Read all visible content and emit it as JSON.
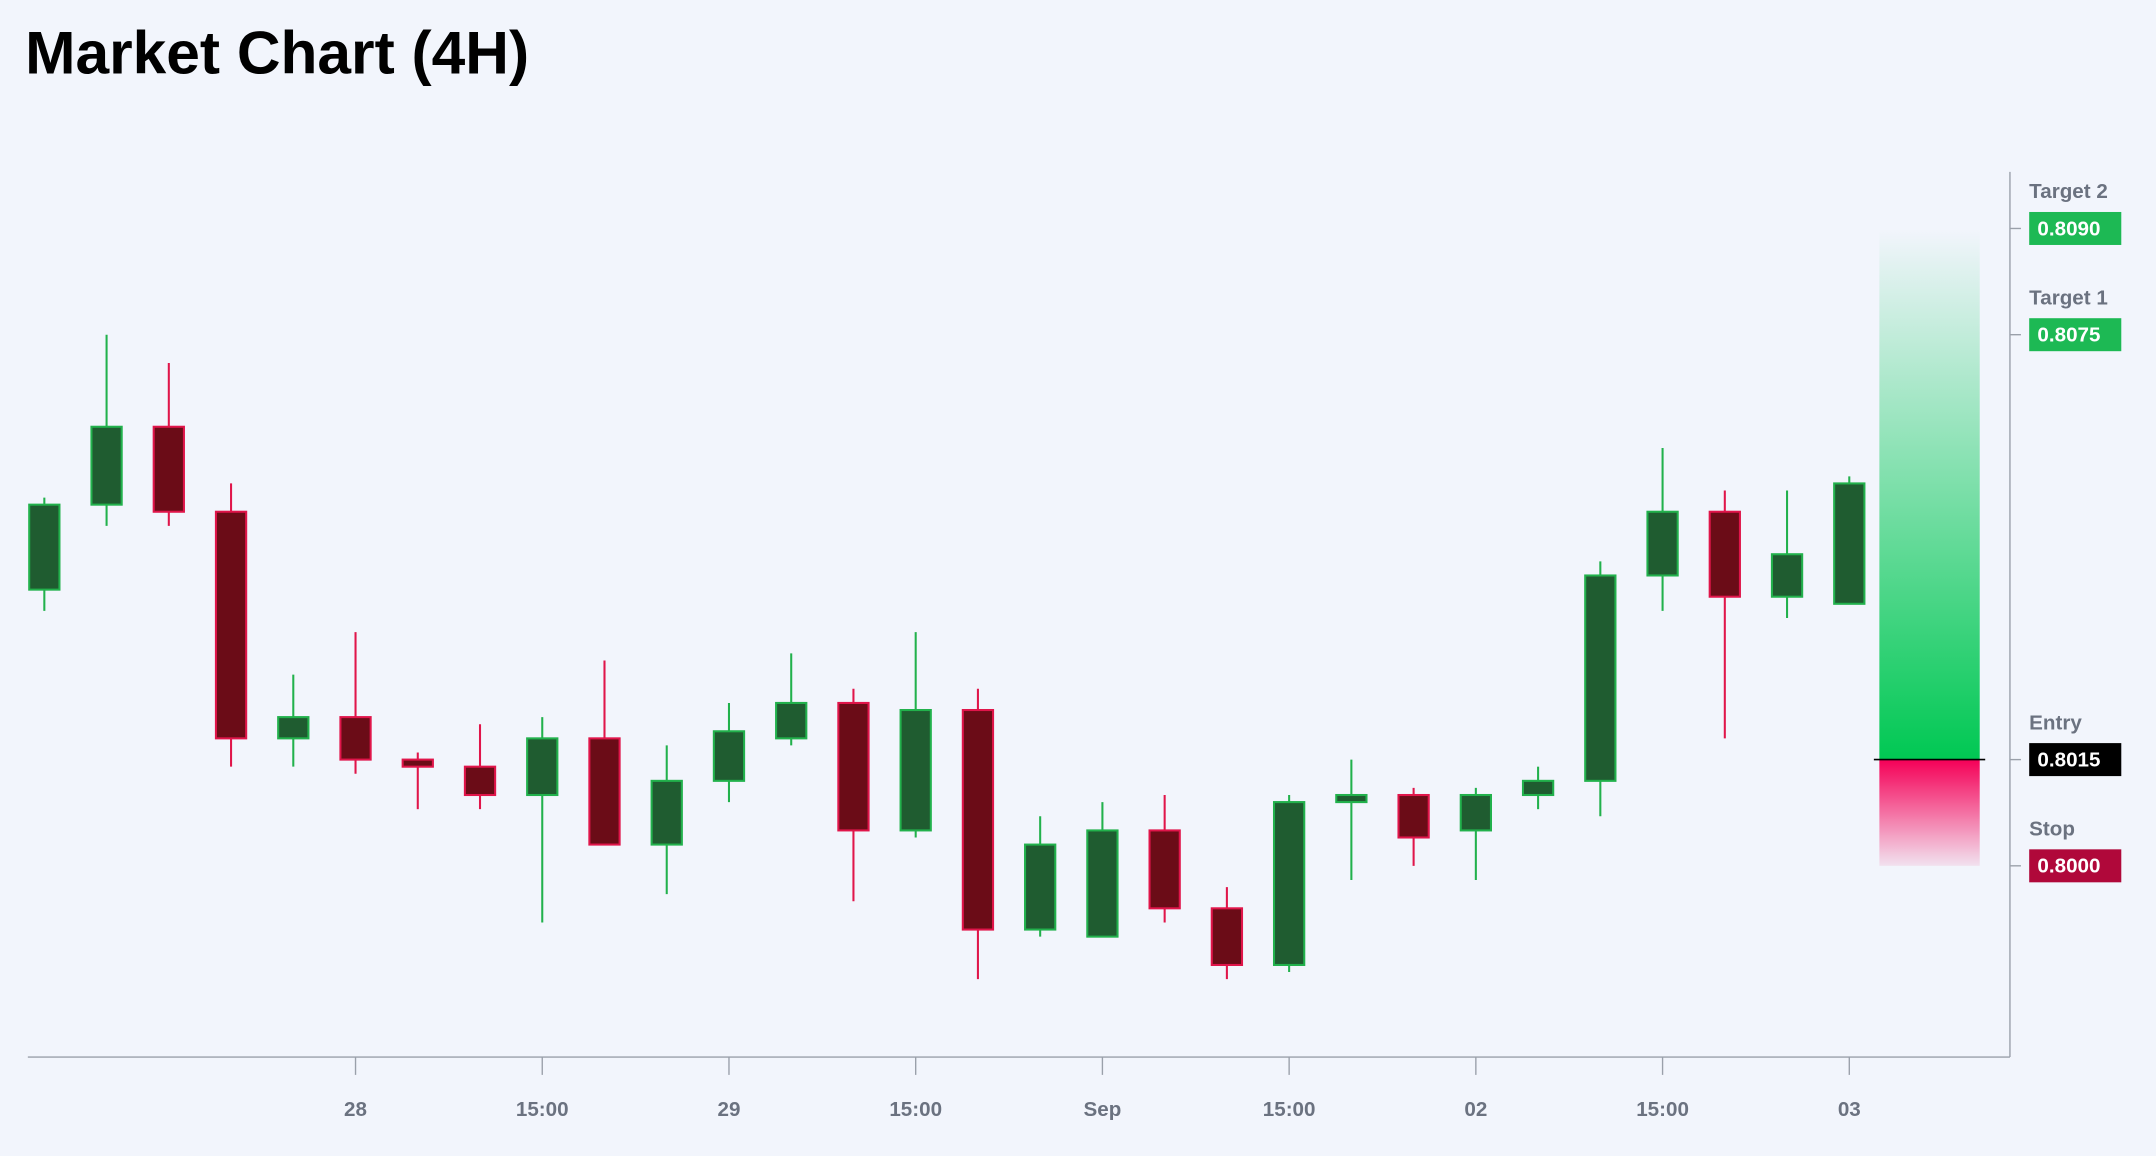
{
  "chart_data": {
    "type": "candlestick",
    "title": "Market Chart (4H)",
    "categories": [
      null,
      null,
      null,
      null,
      null,
      "28",
      null,
      null,
      "15:00",
      null,
      null,
      "29",
      null,
      null,
      "15:00",
      null,
      null,
      "Sep",
      null,
      null,
      "15:00",
      null,
      null,
      "02",
      null,
      null,
      "15:00",
      null,
      null,
      "03"
    ],
    "open": [
      0.8039,
      0.8051,
      0.8062,
      0.805,
      0.8018,
      0.8021,
      0.8015,
      0.8014,
      0.801,
      0.8018,
      0.8003,
      0.8012,
      0.8018,
      0.8023,
      0.8005,
      0.8022,
      0.7991,
      0.799,
      0.8005,
      0.7994,
      0.7986,
      0.8009,
      0.801,
      0.8005,
      0.801,
      0.8012,
      0.8041,
      0.805,
      0.8038,
      0.8037
    ],
    "high": [
      0.8052,
      0.8075,
      0.8071,
      0.8054,
      0.8027,
      0.8033,
      0.8016,
      0.802,
      0.8021,
      0.8029,
      0.8017,
      0.8023,
      0.803,
      0.8025,
      0.8033,
      0.8025,
      0.8007,
      0.8009,
      0.801,
      0.7997,
      0.801,
      0.8015,
      0.8011,
      0.8011,
      0.8014,
      0.8043,
      0.8059,
      0.8053,
      0.8053,
      0.8055
    ],
    "low": [
      0.8036,
      0.8048,
      0.8048,
      0.8014,
      0.8014,
      0.8013,
      0.8008,
      0.8008,
      0.7992,
      0.8003,
      0.7996,
      0.8009,
      0.8017,
      0.7995,
      0.8004,
      0.7984,
      0.799,
      0.799,
      0.7992,
      0.7984,
      0.7985,
      0.7998,
      0.8,
      0.7998,
      0.8008,
      0.8007,
      0.8036,
      0.8018,
      0.8035,
      0.8037
    ],
    "close": [
      0.8051,
      0.8062,
      0.805,
      0.8018,
      0.8021,
      0.8015,
      0.8014,
      0.801,
      0.8018,
      0.8003,
      0.8012,
      0.8019,
      0.8023,
      0.8005,
      0.8022,
      0.7991,
      0.8003,
      0.8005,
      0.7994,
      0.7986,
      0.8009,
      0.801,
      0.8004,
      0.801,
      0.8012,
      0.8041,
      0.805,
      0.8038,
      0.8044,
      0.8054
    ],
    "up_color": "#22b14c",
    "up_fill": "#1f5c30",
    "down_color": "#e0154a",
    "down_fill": "#6b0c17",
    "ylim": [
      0.7973,
      0.8098
    ],
    "levels": [
      {
        "name": "Target 2",
        "value": 0.809,
        "label": "0.8090",
        "color": "#1db954"
      },
      {
        "name": "Target 1",
        "value": 0.8075,
        "label": "0.8075",
        "color": "#1db954"
      },
      {
        "name": "Entry",
        "value": 0.8015,
        "label": "0.8015",
        "color": "#000000"
      },
      {
        "name": "Stop",
        "value": 0.8,
        "label": "0.8000",
        "color": "#b0083a"
      }
    ]
  }
}
